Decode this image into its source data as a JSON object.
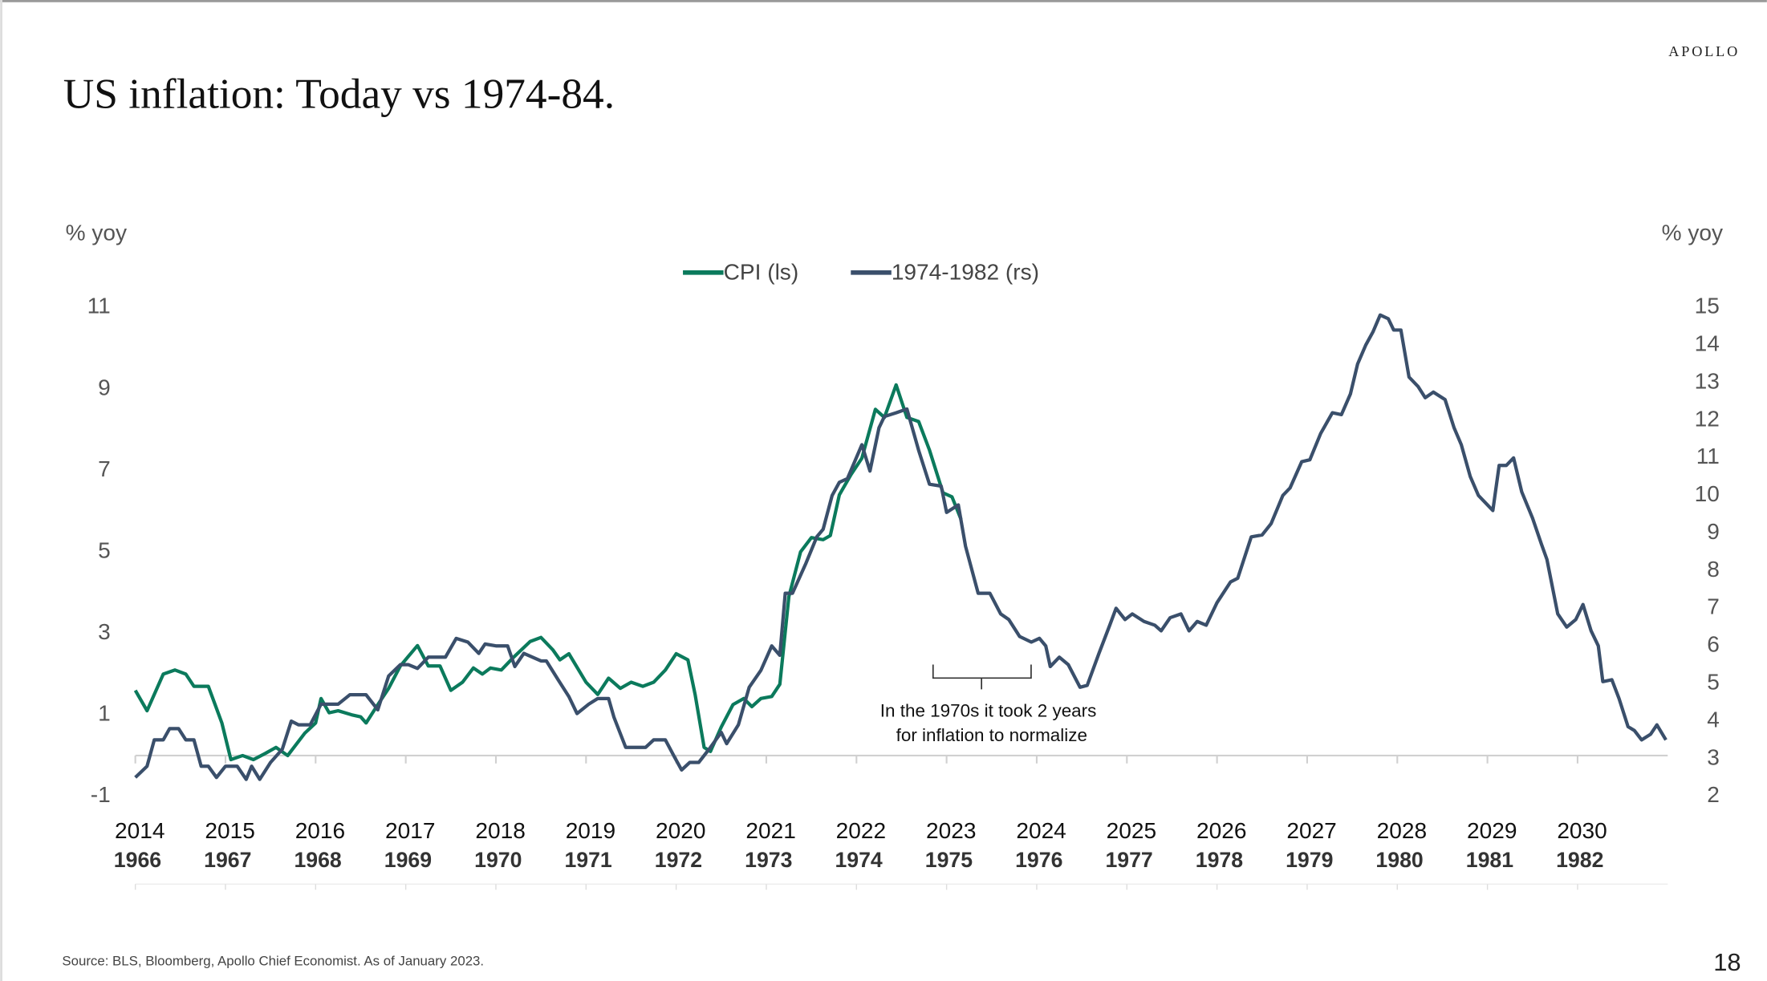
{
  "brand": "APOLLO",
  "footer": {
    "source": "Source: BLS, Bloomberg, Apollo Chief Economist.  As of January 2023.",
    "page_number": "18"
  },
  "chart_data": {
    "type": "line",
    "title": "US inflation: Today vs 1974-84.",
    "ylabel": "% yoy",
    "y2label": "% yoy",
    "annotation": [
      "In the 1970s it took 2 years",
      "for inflation to normalize"
    ],
    "legend": "top",
    "xlim": [
      2014,
      2031
    ],
    "xticks": [
      2014,
      2015,
      2016,
      2017,
      2018,
      2019,
      2020,
      2021,
      2022,
      2023,
      2024,
      2025,
      2026,
      2027,
      2028,
      2029,
      2030
    ],
    "xticks2": [
      1966,
      1967,
      1968,
      1969,
      1970,
      1971,
      1972,
      1973,
      1974,
      1975,
      1976,
      1977,
      1978,
      1979,
      1980,
      1981,
      1982
    ],
    "ylim": [
      -1,
      11
    ],
    "yticks": [
      -1,
      1,
      3,
      5,
      7,
      9,
      11
    ],
    "y2lim": [
      2,
      15
    ],
    "y2ticks": [
      2,
      3,
      4,
      5,
      6,
      7,
      8,
      9,
      10,
      11,
      12,
      13,
      14,
      15
    ],
    "series": [
      {
        "name": "CPI (ls)",
        "color": "#0b7a5c",
        "x": [
          2014.0,
          2014.13,
          2014.31,
          2014.44,
          2014.56,
          2014.65,
          2014.81,
          2014.96,
          2015.06,
          2015.19,
          2015.31,
          2015.44,
          2015.56,
          2015.69,
          2015.88,
          2016.0,
          2016.06,
          2016.15,
          2016.25,
          2016.4,
          2016.5,
          2016.56,
          2016.69,
          2016.81,
          2016.94,
          2017.13,
          2017.25,
          2017.38,
          2017.5,
          2017.63,
          2017.75,
          2017.85,
          2017.94,
          2018.06,
          2018.19,
          2018.38,
          2018.5,
          2018.63,
          2018.71,
          2018.81,
          2019.0,
          2019.13,
          2019.25,
          2019.38,
          2019.5,
          2019.63,
          2019.75,
          2019.88,
          2020.0,
          2020.13,
          2020.21,
          2020.31,
          2020.38,
          2020.5,
          2020.63,
          2020.75,
          2020.84,
          2020.94,
          2021.06,
          2021.15,
          2021.25,
          2021.38,
          2021.5,
          2021.63,
          2021.71,
          2021.81,
          2021.94,
          2022.06,
          2022.21,
          2022.31,
          2022.44,
          2022.56,
          2022.69,
          2022.81,
          2022.96,
          2023.06,
          2023.16
        ],
        "values": [
          1.6,
          1.1,
          2.0,
          2.1,
          2.0,
          1.7,
          1.7,
          0.8,
          -0.1,
          0.0,
          -0.1,
          0.05,
          0.2,
          0.0,
          0.55,
          0.8,
          1.4,
          1.05,
          1.1,
          1.0,
          0.95,
          0.8,
          1.25,
          1.65,
          2.2,
          2.7,
          2.2,
          2.2,
          1.6,
          1.8,
          2.15,
          2.0,
          2.15,
          2.1,
          2.4,
          2.8,
          2.9,
          2.6,
          2.35,
          2.5,
          1.8,
          1.5,
          1.9,
          1.65,
          1.8,
          1.7,
          1.8,
          2.1,
          2.5,
          2.35,
          1.5,
          0.2,
          0.1,
          0.7,
          1.25,
          1.4,
          1.2,
          1.4,
          1.45,
          1.75,
          3.9,
          5.0,
          5.35,
          5.3,
          5.4,
          6.4,
          6.9,
          7.3,
          8.5,
          8.3,
          9.1,
          8.3,
          8.2,
          7.5,
          6.45,
          6.35,
          5.8
        ]
      },
      {
        "name": "1974-1982 (rs)",
        "color": "#3a4f6b",
        "axis": "y2",
        "x": [
          2014.0,
          2014.13,
          2014.21,
          2014.31,
          2014.38,
          2014.48,
          2014.56,
          2014.65,
          2014.73,
          2014.81,
          2014.9,
          2015.0,
          2015.13,
          2015.23,
          2015.29,
          2015.38,
          2015.5,
          2015.63,
          2015.73,
          2015.81,
          2015.94,
          2016.06,
          2016.25,
          2016.38,
          2016.56,
          2016.69,
          2016.81,
          2016.94,
          2017.03,
          2017.13,
          2017.25,
          2017.44,
          2017.56,
          2017.69,
          2017.81,
          2017.88,
          2018.0,
          2018.13,
          2018.21,
          2018.31,
          2018.5,
          2018.56,
          2018.69,
          2018.81,
          2018.9,
          2019.03,
          2019.13,
          2019.25,
          2019.31,
          2019.44,
          2019.54,
          2019.66,
          2019.75,
          2019.88,
          2019.98,
          2020.06,
          2020.15,
          2020.25,
          2020.38,
          2020.5,
          2020.56,
          2020.69,
          2020.81,
          2020.94,
          2021.06,
          2021.15,
          2021.21,
          2021.29,
          2021.44,
          2021.56,
          2021.63,
          2021.73,
          2021.81,
          2021.9,
          2021.98,
          2022.06,
          2022.15,
          2022.25,
          2022.31,
          2022.44,
          2022.56,
          2022.69,
          2022.81,
          2022.94,
          2023.0,
          2023.13,
          2023.21,
          2023.35,
          2023.48,
          2023.6,
          2023.69,
          2023.81,
          2023.94,
          2024.03,
          2024.1,
          2024.15,
          2024.25,
          2024.35,
          2024.48,
          2024.56,
          2024.69,
          2024.81,
          2024.88,
          2024.98,
          2025.06,
          2025.19,
          2025.31,
          2025.38,
          2025.48,
          2025.6,
          2025.69,
          2025.78,
          2025.88,
          2026.0,
          2026.15,
          2026.23,
          2026.38,
          2026.5,
          2026.6,
          2026.73,
          2026.81,
          2026.94,
          2027.03,
          2027.15,
          2027.28,
          2027.38,
          2027.48,
          2027.56,
          2027.65,
          2027.73,
          2027.81,
          2027.9,
          2027.96,
          2028.04,
          2028.13,
          2028.23,
          2028.31,
          2028.4,
          2028.53,
          2028.63,
          2028.71,
          2028.81,
          2028.9,
          2029.06,
          2029.13,
          2029.21,
          2029.29,
          2029.38,
          2029.5,
          2029.6,
          2029.66,
          2029.78,
          2029.88,
          2029.98,
          2030.06,
          2030.15,
          2030.23,
          2030.28,
          2030.38,
          2030.46,
          2030.56,
          2030.63,
          2030.71,
          2030.81,
          2030.88,
          2030.98
        ],
        "values": [
          2.5,
          2.8,
          3.5,
          3.5,
          3.8,
          3.8,
          3.5,
          3.5,
          2.8,
          2.8,
          2.5,
          2.8,
          2.8,
          2.45,
          2.8,
          2.45,
          2.9,
          3.25,
          4.0,
          3.9,
          3.9,
          4.45,
          4.45,
          4.7,
          4.7,
          4.3,
          5.2,
          5.5,
          5.5,
          5.4,
          5.7,
          5.7,
          6.2,
          6.1,
          5.8,
          6.05,
          6.0,
          6.0,
          5.45,
          5.8,
          5.6,
          5.6,
          5.1,
          4.65,
          4.2,
          4.45,
          4.6,
          4.6,
          4.1,
          3.3,
          3.3,
          3.3,
          3.5,
          3.5,
          3.05,
          2.7,
          2.9,
          2.9,
          3.3,
          3.7,
          3.4,
          3.9,
          4.9,
          5.35,
          6.0,
          5.75,
          7.4,
          7.4,
          8.2,
          8.9,
          9.1,
          10.0,
          10.35,
          10.45,
          10.9,
          11.35,
          10.65,
          11.8,
          12.1,
          12.2,
          12.3,
          11.2,
          10.3,
          10.25,
          9.55,
          9.75,
          8.65,
          7.4,
          7.4,
          6.85,
          6.7,
          6.25,
          6.1,
          6.2,
          6.0,
          5.45,
          5.7,
          5.5,
          4.9,
          4.95,
          5.8,
          6.55,
          7.0,
          6.7,
          6.85,
          6.65,
          6.55,
          6.4,
          6.75,
          6.85,
          6.4,
          6.65,
          6.55,
          7.15,
          7.7,
          7.8,
          8.9,
          8.95,
          9.25,
          10.0,
          10.2,
          10.9,
          10.95,
          11.65,
          12.2,
          12.15,
          12.7,
          13.5,
          14.0,
          14.35,
          14.8,
          14.7,
          14.4,
          14.4,
          13.15,
          12.9,
          12.6,
          12.75,
          12.55,
          11.8,
          11.35,
          10.5,
          10.0,
          9.6,
          10.8,
          10.8,
          11.0,
          10.1,
          9.4,
          8.7,
          8.3,
          6.85,
          6.5,
          6.7,
          7.1,
          6.4,
          6.0,
          5.05,
          5.1,
          4.6,
          3.85,
          3.75,
          3.5,
          3.65,
          3.9,
          3.5
        ]
      }
    ]
  }
}
